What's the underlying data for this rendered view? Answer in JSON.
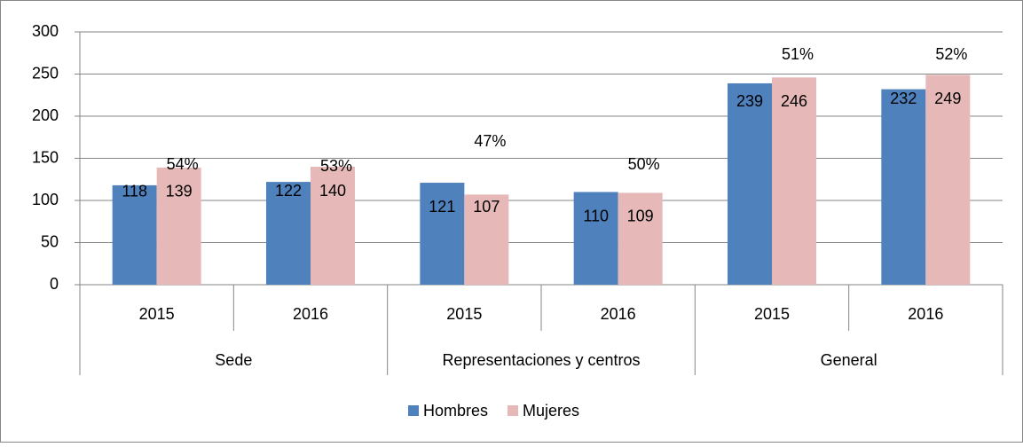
{
  "chart_data": {
    "type": "bar",
    "categories": [
      "2015",
      "2016",
      "2015",
      "2016",
      "2015",
      "2016"
    ],
    "groups": [
      "Sede",
      "Representaciones y centros",
      "General"
    ],
    "series": [
      {
        "name": "Hombres",
        "color": "#4f81bd",
        "values": [
          118,
          122,
          121,
          110,
          239,
          232
        ]
      },
      {
        "name": "Mujeres",
        "color": "#e6b9b8",
        "values": [
          139,
          140,
          107,
          109,
          246,
          249
        ]
      }
    ],
    "annotations": [
      "54%",
      "53%",
      "47%",
      "50%",
      "51%",
      "52%"
    ],
    "ylim": [
      0,
      300
    ],
    "yticks": [
      0,
      50,
      100,
      150,
      200,
      250,
      300
    ],
    "grid": true,
    "legend": "bottom"
  }
}
